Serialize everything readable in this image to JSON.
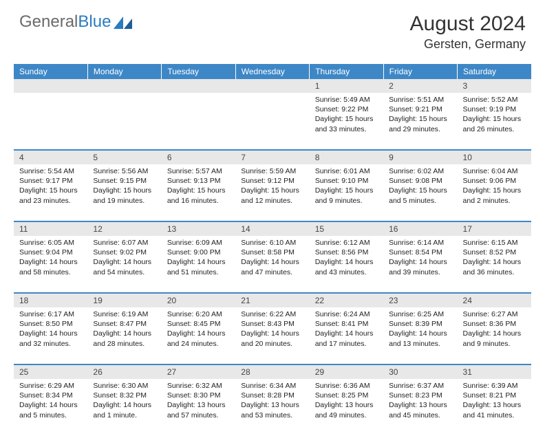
{
  "logo": {
    "general": "General",
    "blue": "Blue"
  },
  "title": "August 2024",
  "location": "Gersten, Germany",
  "colors": {
    "header_bg": "#3d87c7",
    "header_text": "#ffffff",
    "daynum_bg": "#e8e8e8",
    "border": "#3d87c7",
    "logo_gray": "#6a6a6a",
    "logo_blue": "#2a7bbf"
  },
  "weekdays": [
    "Sunday",
    "Monday",
    "Tuesday",
    "Wednesday",
    "Thursday",
    "Friday",
    "Saturday"
  ],
  "weeks": [
    {
      "nums": [
        "",
        "",
        "",
        "",
        "1",
        "2",
        "3"
      ],
      "cells": [
        "",
        "",
        "",
        "",
        "Sunrise: 5:49 AM\nSunset: 9:22 PM\nDaylight: 15 hours and 33 minutes.",
        "Sunrise: 5:51 AM\nSunset: 9:21 PM\nDaylight: 15 hours and 29 minutes.",
        "Sunrise: 5:52 AM\nSunset: 9:19 PM\nDaylight: 15 hours and 26 minutes."
      ]
    },
    {
      "nums": [
        "4",
        "5",
        "6",
        "7",
        "8",
        "9",
        "10"
      ],
      "cells": [
        "Sunrise: 5:54 AM\nSunset: 9:17 PM\nDaylight: 15 hours and 23 minutes.",
        "Sunrise: 5:56 AM\nSunset: 9:15 PM\nDaylight: 15 hours and 19 minutes.",
        "Sunrise: 5:57 AM\nSunset: 9:13 PM\nDaylight: 15 hours and 16 minutes.",
        "Sunrise: 5:59 AM\nSunset: 9:12 PM\nDaylight: 15 hours and 12 minutes.",
        "Sunrise: 6:01 AM\nSunset: 9:10 PM\nDaylight: 15 hours and 9 minutes.",
        "Sunrise: 6:02 AM\nSunset: 9:08 PM\nDaylight: 15 hours and 5 minutes.",
        "Sunrise: 6:04 AM\nSunset: 9:06 PM\nDaylight: 15 hours and 2 minutes."
      ]
    },
    {
      "nums": [
        "11",
        "12",
        "13",
        "14",
        "15",
        "16",
        "17"
      ],
      "cells": [
        "Sunrise: 6:05 AM\nSunset: 9:04 PM\nDaylight: 14 hours and 58 minutes.",
        "Sunrise: 6:07 AM\nSunset: 9:02 PM\nDaylight: 14 hours and 54 minutes.",
        "Sunrise: 6:09 AM\nSunset: 9:00 PM\nDaylight: 14 hours and 51 minutes.",
        "Sunrise: 6:10 AM\nSunset: 8:58 PM\nDaylight: 14 hours and 47 minutes.",
        "Sunrise: 6:12 AM\nSunset: 8:56 PM\nDaylight: 14 hours and 43 minutes.",
        "Sunrise: 6:14 AM\nSunset: 8:54 PM\nDaylight: 14 hours and 39 minutes.",
        "Sunrise: 6:15 AM\nSunset: 8:52 PM\nDaylight: 14 hours and 36 minutes."
      ]
    },
    {
      "nums": [
        "18",
        "19",
        "20",
        "21",
        "22",
        "23",
        "24"
      ],
      "cells": [
        "Sunrise: 6:17 AM\nSunset: 8:50 PM\nDaylight: 14 hours and 32 minutes.",
        "Sunrise: 6:19 AM\nSunset: 8:47 PM\nDaylight: 14 hours and 28 minutes.",
        "Sunrise: 6:20 AM\nSunset: 8:45 PM\nDaylight: 14 hours and 24 minutes.",
        "Sunrise: 6:22 AM\nSunset: 8:43 PM\nDaylight: 14 hours and 20 minutes.",
        "Sunrise: 6:24 AM\nSunset: 8:41 PM\nDaylight: 14 hours and 17 minutes.",
        "Sunrise: 6:25 AM\nSunset: 8:39 PM\nDaylight: 14 hours and 13 minutes.",
        "Sunrise: 6:27 AM\nSunset: 8:36 PM\nDaylight: 14 hours and 9 minutes."
      ]
    },
    {
      "nums": [
        "25",
        "26",
        "27",
        "28",
        "29",
        "30",
        "31"
      ],
      "cells": [
        "Sunrise: 6:29 AM\nSunset: 8:34 PM\nDaylight: 14 hours and 5 minutes.",
        "Sunrise: 6:30 AM\nSunset: 8:32 PM\nDaylight: 14 hours and 1 minute.",
        "Sunrise: 6:32 AM\nSunset: 8:30 PM\nDaylight: 13 hours and 57 minutes.",
        "Sunrise: 6:34 AM\nSunset: 8:28 PM\nDaylight: 13 hours and 53 minutes.",
        "Sunrise: 6:36 AM\nSunset: 8:25 PM\nDaylight: 13 hours and 49 minutes.",
        "Sunrise: 6:37 AM\nSunset: 8:23 PM\nDaylight: 13 hours and 45 minutes.",
        "Sunrise: 6:39 AM\nSunset: 8:21 PM\nDaylight: 13 hours and 41 minutes."
      ]
    }
  ]
}
